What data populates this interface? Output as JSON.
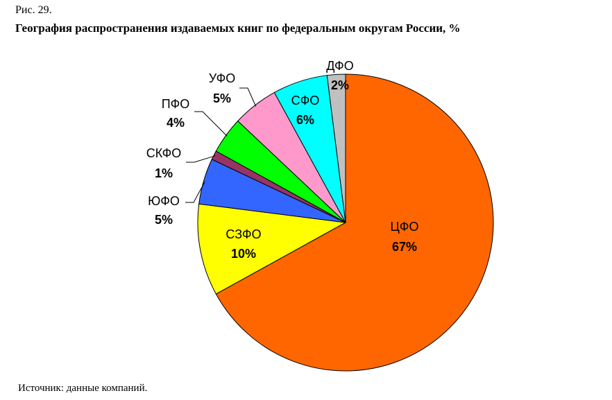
{
  "figure": {
    "label": "Рис. 29.",
    "source": "Источник: данные компаний."
  },
  "chart_data": {
    "type": "pie",
    "title": "География распространения издаваемых книг по федеральным округам России, %",
    "slices": [
      {
        "name": "ЦФО",
        "value": 67,
        "label": "67%",
        "color": "#FF6600"
      },
      {
        "name": "СЗФО",
        "value": 10,
        "label": "10%",
        "color": "#FFFF00"
      },
      {
        "name": "ЮФО",
        "value": 5,
        "label": "5%",
        "color": "#3366FF"
      },
      {
        "name": "СКФО",
        "value": 1,
        "label": "1%",
        "color": "#993366"
      },
      {
        "name": "ПФО",
        "value": 4,
        "label": "4%",
        "color": "#00FF00"
      },
      {
        "name": "УФО",
        "value": 5,
        "label": "5%",
        "color": "#FF99CC"
      },
      {
        "name": "СФО",
        "value": 6,
        "label": "6%",
        "color": "#00FFFF"
      },
      {
        "name": "ДФО",
        "value": 2,
        "label": "2%",
        "color": "#C0C0C0"
      }
    ],
    "start": "12 o'clock",
    "direction": "clockwise"
  }
}
